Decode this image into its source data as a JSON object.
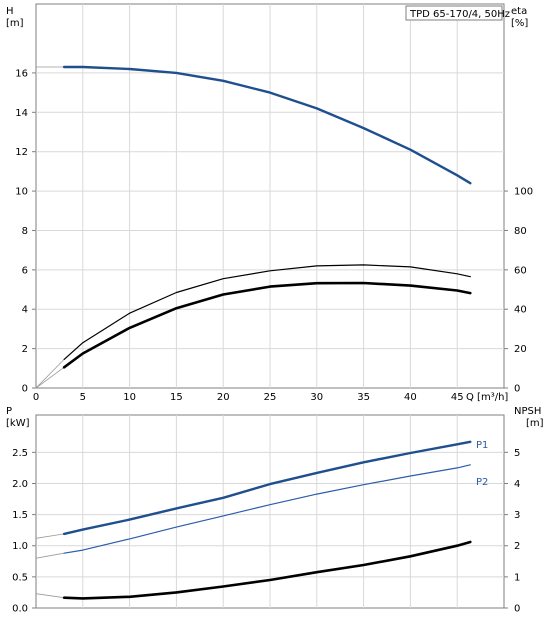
{
  "chart_data": [
    {
      "type": "line",
      "title": "TPD 65-170/4, 50Hz",
      "xlabel": "Q [m³/h]",
      "x_tick_labels": [
        "0",
        "5",
        "10",
        "15",
        "20",
        "25",
        "30",
        "35",
        "40",
        "45"
      ],
      "xlim": [
        0,
        50
      ],
      "left_axis": {
        "label_line1": "H",
        "label_line2": "[m]",
        "ylim": [
          0,
          19.5
        ],
        "tick_values": [
          0,
          2,
          4,
          6,
          8,
          10,
          12,
          14,
          16
        ],
        "tick_labels": [
          "0",
          "2",
          "4",
          "6",
          "8",
          "10",
          "12",
          "14",
          "16"
        ]
      },
      "right_axis": {
        "label_line1": "eta",
        "label_line2": "[%]",
        "ylim": [
          0,
          195
        ],
        "tick_values": [
          0,
          20,
          40,
          60,
          80,
          100
        ],
        "tick_labels": [
          "0",
          "20",
          "40",
          "60",
          "80",
          "100"
        ]
      },
      "grid": true,
      "series": [
        {
          "key": "H",
          "axis": "left",
          "color": "#1f4f8f",
          "stroke_width": 2.4,
          "x": [
            3,
            5,
            10,
            15,
            20,
            25,
            30,
            35,
            40,
            45,
            46.4
          ],
          "y": [
            16.3,
            16.3,
            16.2,
            16.0,
            15.6,
            15.0,
            14.2,
            13.2,
            12.1,
            10.8,
            10.4
          ],
          "extension": {
            "x": [
              0,
              3
            ],
            "y": [
              16.3,
              16.3
            ]
          }
        },
        {
          "key": "eta-thin",
          "axis": "right",
          "color": "#000000",
          "stroke_width": 1.2,
          "x": [
            3,
            5,
            10,
            15,
            20,
            25,
            30,
            35,
            40,
            45,
            46.4
          ],
          "y": [
            14.5,
            23,
            38,
            48.5,
            55.5,
            59.5,
            62,
            62.5,
            61.5,
            58,
            56.5
          ],
          "extension": {
            "x": [
              0,
              3
            ],
            "y": [
              0,
              14.5
            ]
          }
        },
        {
          "key": "eta-thick",
          "axis": "right",
          "color": "#000000",
          "stroke_width": 2.6,
          "x": [
            3,
            5,
            10,
            15,
            20,
            25,
            30,
            35,
            40,
            45,
            46.4
          ],
          "y": [
            10.5,
            17.5,
            30.5,
            40.5,
            47.5,
            51.5,
            53.2,
            53.3,
            52,
            49.5,
            48.2
          ],
          "extension": {
            "x": [
              0,
              3
            ],
            "y": [
              0,
              10.5
            ]
          }
        }
      ]
    },
    {
      "type": "line",
      "xlim": [
        0,
        50
      ],
      "left_axis": {
        "label_line1": "P",
        "label_line2": "[kW]",
        "ylim": [
          0,
          3.1
        ],
        "tick_values": [
          0,
          0.5,
          1.0,
          1.5,
          2.0,
          2.5
        ],
        "tick_labels": [
          "0.0",
          "0.5",
          "1.0",
          "1.5",
          "2.0",
          "2.5"
        ]
      },
      "right_axis": {
        "label_line1": "NPSH",
        "label_line2": "[m]",
        "ylim": [
          0,
          6.2
        ],
        "tick_values": [
          0,
          1,
          2,
          3,
          4,
          5
        ],
        "tick_labels": [
          "0",
          "1",
          "2",
          "3",
          "4",
          "5"
        ]
      },
      "grid": true,
      "series": [
        {
          "key": "P1",
          "name": "P1",
          "axis": "left",
          "color": "#1f4f8f",
          "stroke_width": 2.4,
          "x": [
            3,
            5,
            10,
            15,
            20,
            25,
            30,
            35,
            40,
            45,
            46.4
          ],
          "y": [
            1.19,
            1.26,
            1.42,
            1.6,
            1.77,
            1.99,
            2.17,
            2.34,
            2.49,
            2.63,
            2.67
          ],
          "extension": {
            "x": [
              0,
              3
            ],
            "y": [
              1.12,
              1.19
            ]
          }
        },
        {
          "key": "P2",
          "name": "P2",
          "axis": "left",
          "color": "#2a5ea8",
          "stroke_width": 1.2,
          "x": [
            3,
            5,
            10,
            15,
            20,
            25,
            30,
            35,
            40,
            45,
            46.4
          ],
          "y": [
            0.88,
            0.93,
            1.11,
            1.3,
            1.48,
            1.66,
            1.83,
            1.98,
            2.12,
            2.25,
            2.3
          ],
          "extension": {
            "x": [
              0,
              3
            ],
            "y": [
              0.8,
              0.88
            ]
          }
        },
        {
          "key": "NPSH",
          "axis": "right",
          "color": "#000000",
          "stroke_width": 2.6,
          "x": [
            3,
            5,
            10,
            15,
            20,
            25,
            30,
            35,
            40,
            45,
            46.4
          ],
          "y": [
            0.33,
            0.31,
            0.36,
            0.5,
            0.69,
            0.9,
            1.15,
            1.38,
            1.66,
            2.0,
            2.12
          ],
          "extension": {
            "x": [
              0,
              3
            ],
            "y": [
              0.46,
              0.33
            ]
          }
        }
      ]
    }
  ]
}
